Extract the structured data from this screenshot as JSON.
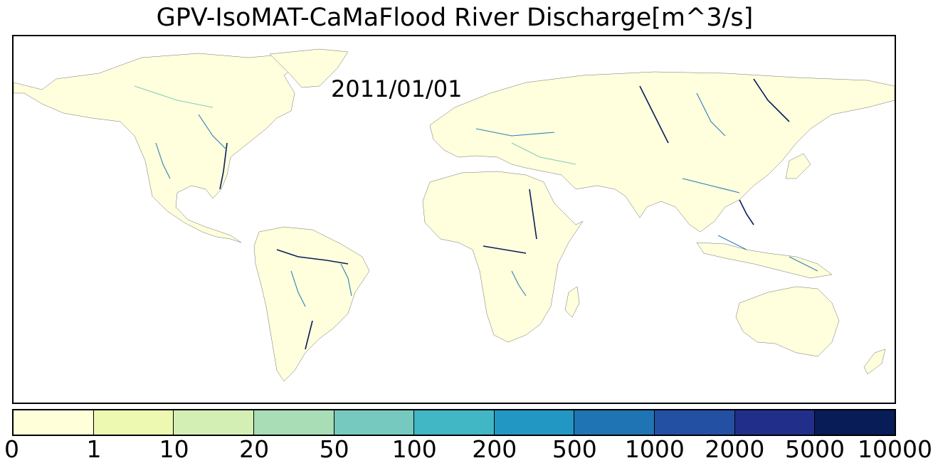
{
  "title": "GPV-IsoMAT-CaMaFlood River Discharge[m^3/s]",
  "date": "2011/01/01",
  "colors": {
    "land": "#ffffdd",
    "border": "#707070",
    "river_low": "#7fcdbb",
    "river_mid": "#2c7fb8",
    "river_high": "#081d58"
  },
  "colorbar": {
    "unit": "m^3/s",
    "bins": [
      {
        "min": 0,
        "max": 1,
        "color": "#ffffd9"
      },
      {
        "min": 1,
        "max": 10,
        "color": "#edf8b1"
      },
      {
        "min": 10,
        "max": 20,
        "color": "#d4efb4"
      },
      {
        "min": 20,
        "max": 50,
        "color": "#a8ddb5"
      },
      {
        "min": 50,
        "max": 100,
        "color": "#76c9bf"
      },
      {
        "min": 100,
        "max": 200,
        "color": "#41b6c4"
      },
      {
        "min": 200,
        "max": 500,
        "color": "#2297c4"
      },
      {
        "min": 500,
        "max": 1000,
        "color": "#1f74b3"
      },
      {
        "min": 1000,
        "max": 2000,
        "color": "#2350a2"
      },
      {
        "min": 2000,
        "max": 5000,
        "color": "#212f8a"
      },
      {
        "min": 5000,
        "max": 10000,
        "color": "#081d58"
      }
    ],
    "tick_labels": [
      "0",
      "1",
      "10",
      "20",
      "50",
      "100",
      "200",
      "500",
      "1000",
      "2000",
      "5000",
      "10000"
    ]
  }
}
